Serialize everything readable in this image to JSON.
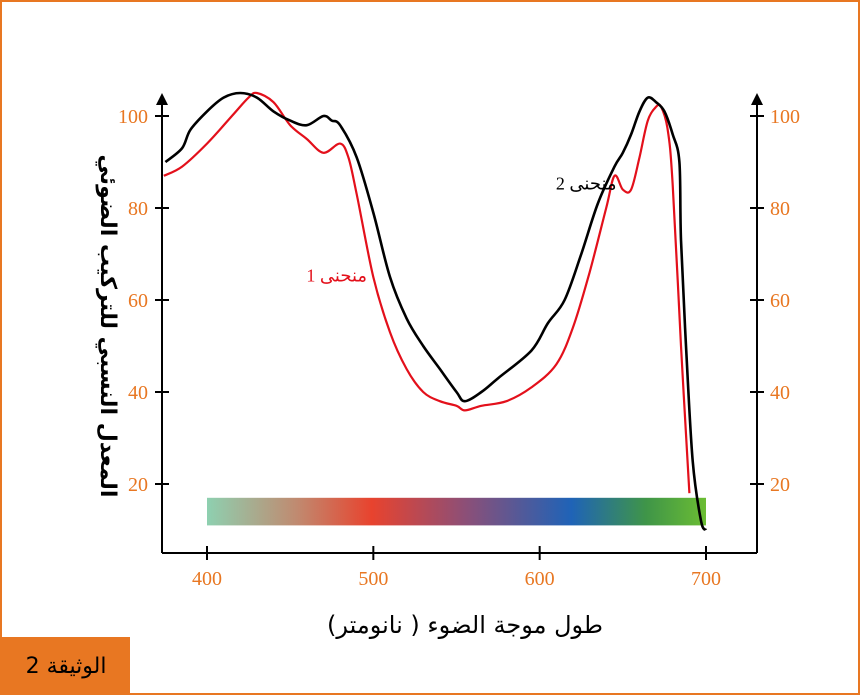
{
  "chart_data": {
    "type": "line",
    "xlabel": "طول موجة الضوء ( نانومتر)",
    "ylabel": "المعدل النسبي للتركيب الضوئي",
    "xlim": [
      373,
      705
    ],
    "ylim": [
      6,
      108
    ],
    "x_ticks": [
      "400",
      "500",
      "600",
      "700"
    ],
    "x_tick_values": [
      400,
      500,
      600,
      700
    ],
    "y_ticks": [
      "20",
      "40",
      "60",
      "80",
      "100"
    ],
    "y_tick_values": [
      20,
      40,
      60,
      80,
      100
    ],
    "spectrum_bar": {
      "x_range": [
        400,
        700
      ],
      "y_range": [
        11,
        17
      ]
    },
    "series": [
      {
        "name": "منحنى 1",
        "color": "#e3101b",
        "x": [
          374,
          385,
          400,
          415,
          425,
          430,
          440,
          450,
          460,
          470,
          480,
          485,
          490,
          500,
          510,
          520,
          530,
          540,
          550,
          555,
          565,
          580,
          595,
          610,
          620,
          630,
          640,
          645,
          650,
          655,
          660,
          665,
          670,
          673,
          677,
          680,
          685,
          690
        ],
        "y": [
          87,
          89,
          94,
          100,
          104,
          105,
          103,
          98,
          95,
          92,
          94,
          91,
          83,
          65,
          53,
          45,
          40,
          38,
          37,
          36,
          37,
          38,
          41,
          46,
          54,
          66,
          80,
          87,
          84,
          84,
          91,
          99,
          102,
          102,
          97,
          85,
          50,
          18
        ]
      },
      {
        "name": "منحنى 2",
        "color": "#000000",
        "x": [
          375,
          385,
          390,
          400,
          410,
          420,
          430,
          440,
          450,
          460,
          470,
          475,
          480,
          490,
          500,
          510,
          520,
          530,
          540,
          550,
          555,
          565,
          575,
          595,
          605,
          615,
          625,
          635,
          645,
          650,
          655,
          660,
          665,
          670,
          675,
          680,
          684,
          685,
          688,
          692,
          697,
          700
        ],
        "y": [
          90,
          93,
          97,
          101,
          104,
          105,
          104,
          101,
          99,
          98,
          100,
          99,
          98,
          91,
          79,
          65,
          56,
          50,
          45,
          40,
          38,
          40,
          43,
          49,
          55,
          60,
          70,
          81,
          89,
          92,
          96,
          101,
          104,
          103,
          101,
          96,
          90,
          73,
          50,
          25,
          12,
          10
        ]
      }
    ],
    "annotations": [
      {
        "text": "منحنى 1",
        "x": 478,
        "y": 64,
        "color": "#e3101b"
      },
      {
        "text": "منحنى 2",
        "x": 628,
        "y": 84,
        "color": "#000000"
      }
    ]
  },
  "document_label": "الوثيقة 2",
  "colors": {
    "border": "#e87722",
    "tick_label": "#e87722",
    "curve1": "#e3101b",
    "curve2": "#000000"
  }
}
